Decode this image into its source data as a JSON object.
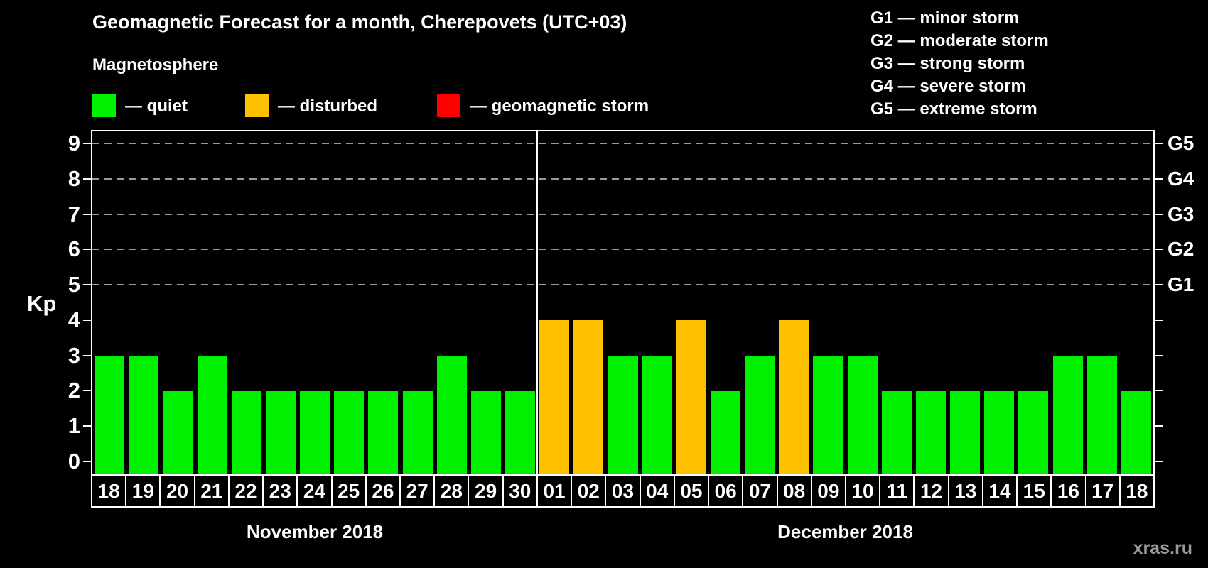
{
  "page": {
    "background": "#000000",
    "watermark": "xras.ru"
  },
  "title": "Geomagnetic Forecast for a month, Cherepovets (UTC+03)",
  "subtitle": "Magnetosphere",
  "legend": {
    "items": [
      {
        "name": "quiet",
        "label": "— quiet",
        "color": "#00f000"
      },
      {
        "name": "disturbed",
        "label": "— disturbed",
        "color": "#ffc000"
      },
      {
        "name": "storm",
        "label": "— geomagnetic storm",
        "color": "#ff0000"
      }
    ]
  },
  "g_legend": {
    "items": [
      {
        "label": "G1 — minor storm"
      },
      {
        "label": "G2 — moderate storm"
      },
      {
        "label": "G3 — strong storm"
      },
      {
        "label": "G4 — severe storm"
      },
      {
        "label": "G5 — extreme storm"
      }
    ]
  },
  "chart_data": {
    "type": "bar",
    "title": "Geomagnetic Forecast for a month, Cherepovets (UTC+03)",
    "ylabel": "Kp",
    "ylim": [
      0,
      9
    ],
    "yticks": [
      0,
      1,
      2,
      3,
      4,
      5,
      6,
      7,
      8,
      9
    ],
    "grid_at_kp": [
      5,
      6,
      7,
      8,
      9
    ],
    "grid_style": "dashed",
    "legend_position": "top",
    "right_axis": [
      {
        "kp": 5,
        "label": "G1"
      },
      {
        "kp": 6,
        "label": "G2"
      },
      {
        "kp": 7,
        "label": "G3"
      },
      {
        "kp": 8,
        "label": "G4"
      },
      {
        "kp": 9,
        "label": "G5"
      }
    ],
    "status_colors": {
      "quiet": "#00f000",
      "disturbed": "#ffc000",
      "storm": "#ff0000"
    },
    "months": [
      {
        "label": "November 2018",
        "days": 13
      },
      {
        "label": "December 2018",
        "days": 18
      }
    ],
    "bars": [
      {
        "month": "November 2018",
        "day": "18",
        "kp": 3,
        "status": "quiet"
      },
      {
        "month": "November 2018",
        "day": "19",
        "kp": 3,
        "status": "quiet"
      },
      {
        "month": "November 2018",
        "day": "20",
        "kp": 2,
        "status": "quiet"
      },
      {
        "month": "November 2018",
        "day": "21",
        "kp": 3,
        "status": "quiet"
      },
      {
        "month": "November 2018",
        "day": "22",
        "kp": 2,
        "status": "quiet"
      },
      {
        "month": "November 2018",
        "day": "23",
        "kp": 2,
        "status": "quiet"
      },
      {
        "month": "November 2018",
        "day": "24",
        "kp": 2,
        "status": "quiet"
      },
      {
        "month": "November 2018",
        "day": "25",
        "kp": 2,
        "status": "quiet"
      },
      {
        "month": "November 2018",
        "day": "26",
        "kp": 2,
        "status": "quiet"
      },
      {
        "month": "November 2018",
        "day": "27",
        "kp": 2,
        "status": "quiet"
      },
      {
        "month": "November 2018",
        "day": "28",
        "kp": 3,
        "status": "quiet"
      },
      {
        "month": "November 2018",
        "day": "29",
        "kp": 2,
        "status": "quiet"
      },
      {
        "month": "November 2018",
        "day": "30",
        "kp": 2,
        "status": "quiet"
      },
      {
        "month": "December 2018",
        "day": "01",
        "kp": 4,
        "status": "disturbed"
      },
      {
        "month": "December 2018",
        "day": "02",
        "kp": 4,
        "status": "disturbed"
      },
      {
        "month": "December 2018",
        "day": "03",
        "kp": 3,
        "status": "quiet"
      },
      {
        "month": "December 2018",
        "day": "04",
        "kp": 3,
        "status": "quiet"
      },
      {
        "month": "December 2018",
        "day": "05",
        "kp": 4,
        "status": "disturbed"
      },
      {
        "month": "December 2018",
        "day": "06",
        "kp": 2,
        "status": "quiet"
      },
      {
        "month": "December 2018",
        "day": "07",
        "kp": 3,
        "status": "quiet"
      },
      {
        "month": "December 2018",
        "day": "08",
        "kp": 4,
        "status": "disturbed"
      },
      {
        "month": "December 2018",
        "day": "09",
        "kp": 3,
        "status": "quiet"
      },
      {
        "month": "December 2018",
        "day": "10",
        "kp": 3,
        "status": "quiet"
      },
      {
        "month": "December 2018",
        "day": "11",
        "kp": 2,
        "status": "quiet"
      },
      {
        "month": "December 2018",
        "day": "12",
        "kp": 2,
        "status": "quiet"
      },
      {
        "month": "December 2018",
        "day": "13",
        "kp": 2,
        "status": "quiet"
      },
      {
        "month": "December 2018",
        "day": "14",
        "kp": 2,
        "status": "quiet"
      },
      {
        "month": "December 2018",
        "day": "15",
        "kp": 2,
        "status": "quiet"
      },
      {
        "month": "December 2018",
        "day": "16",
        "kp": 3,
        "status": "quiet"
      },
      {
        "month": "December 2018",
        "day": "17",
        "kp": 3,
        "status": "quiet"
      },
      {
        "month": "December 2018",
        "day": "18",
        "kp": 2,
        "status": "quiet"
      }
    ]
  }
}
